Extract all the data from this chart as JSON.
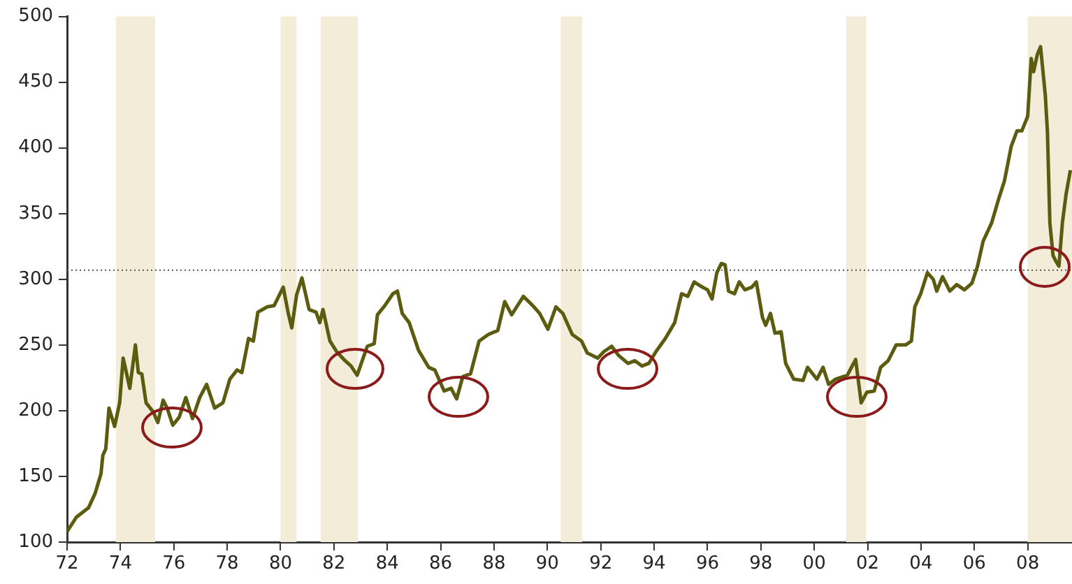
{
  "chart_data": {
    "type": "line",
    "x": [
      1972.0,
      1972.35,
      1972.8,
      1973.05,
      1973.27,
      1973.34,
      1973.45,
      1973.57,
      1973.78,
      1973.97,
      1974.1,
      1974.2,
      1974.35,
      1974.56,
      1974.67,
      1974.8,
      1974.96,
      1975.23,
      1975.4,
      1975.6,
      1975.75,
      1975.96,
      1976.2,
      1976.45,
      1976.7,
      1976.97,
      1977.23,
      1977.53,
      1977.84,
      1978.1,
      1978.37,
      1978.55,
      1978.8,
      1978.98,
      1979.15,
      1979.5,
      1979.76,
      1980.1,
      1980.28,
      1980.42,
      1980.6,
      1980.8,
      1981.07,
      1981.33,
      1981.47,
      1981.59,
      1981.85,
      1982.1,
      1982.37,
      1982.64,
      1982.87,
      1983.25,
      1983.51,
      1983.63,
      1983.91,
      1984.21,
      1984.38,
      1984.56,
      1984.82,
      1985.17,
      1985.55,
      1985.78,
      1986.13,
      1986.39,
      1986.6,
      1986.83,
      1987.12,
      1987.44,
      1987.79,
      1988.14,
      1988.4,
      1988.66,
      1989.1,
      1989.45,
      1989.71,
      1990.02,
      1990.32,
      1990.58,
      1990.93,
      1991.28,
      1991.49,
      1991.89,
      1992.12,
      1992.41,
      1992.67,
      1993.02,
      1993.28,
      1993.55,
      1993.8,
      1994.07,
      1994.42,
      1994.77,
      1995.03,
      1995.26,
      1995.5,
      1995.81,
      1996.0,
      1996.17,
      1996.35,
      1996.52,
      1996.66,
      1996.79,
      1997.01,
      1997.19,
      1997.4,
      1997.66,
      1997.83,
      1998.06,
      1998.18,
      1998.36,
      1998.53,
      1998.76,
      1998.93,
      1999.23,
      1999.58,
      1999.75,
      2000.1,
      2000.33,
      2000.54,
      2000.8,
      2001.24,
      2001.55,
      2001.76,
      2001.97,
      2002.25,
      2002.49,
      2002.77,
      2003.07,
      2003.42,
      2003.64,
      2003.77,
      2003.99,
      2004.24,
      2004.46,
      2004.59,
      2004.81,
      2005.08,
      2005.34,
      2005.63,
      2005.91,
      2006.12,
      2006.33,
      2006.65,
      2006.91,
      2007.13,
      2007.38,
      2007.6,
      2007.78,
      2008.0,
      2008.13,
      2008.22,
      2008.36,
      2008.48,
      2008.66,
      2008.74,
      2008.83,
      2008.95,
      2009.05,
      2009.17,
      2009.3,
      2009.44,
      2009.6
    ],
    "series": [
      {
        "color": "#5c5c10",
        "values": [
          108,
          119,
          126,
          137,
          152,
          166,
          171,
          202,
          188,
          206,
          240,
          231,
          217,
          250,
          229,
          228,
          206,
          199,
          191,
          208,
          202,
          189,
          195,
          210,
          194,
          210,
          220,
          202,
          206,
          224,
          231,
          229,
          255,
          253,
          275,
          279,
          280,
          294,
          275,
          263,
          288,
          301,
          277,
          275,
          267,
          277,
          253,
          245,
          239,
          234,
          227,
          249,
          251,
          273,
          280,
          289,
          291,
          274,
          267,
          246,
          233,
          231,
          215,
          217,
          209,
          226,
          228,
          253,
          258,
          261,
          283,
          273,
          287,
          280,
          274,
          262,
          279,
          274,
          258,
          253,
          244,
          240,
          245,
          249,
          242,
          236,
          238,
          234,
          236,
          245,
          255,
          267,
          289,
          287,
          298,
          294,
          292,
          285,
          305,
          312,
          311,
          291,
          289,
          298,
          292,
          294,
          298,
          271,
          265,
          274,
          259,
          260,
          236,
          224,
          223,
          233,
          224,
          233,
          220,
          224,
          227,
          239,
          206,
          214,
          215,
          233,
          238,
          250,
          250,
          253,
          279,
          289,
          305,
          300,
          291,
          302,
          291,
          296,
          292,
          297,
          310,
          329,
          343,
          361,
          375,
          401,
          413,
          413,
          424,
          468,
          458,
          471,
          477,
          440,
          412,
          343,
          318,
          314,
          310,
          343,
          365,
          383
        ]
      }
    ],
    "xlim": [
      1972,
      2009.66
    ],
    "xticks": [
      {
        "value": 1972,
        "label": "72"
      },
      {
        "value": 1974,
        "label": "74"
      },
      {
        "value": 1976,
        "label": "76"
      },
      {
        "value": 1978,
        "label": "78"
      },
      {
        "value": 1980,
        "label": "80"
      },
      {
        "value": 1982,
        "label": "82"
      },
      {
        "value": 1984,
        "label": "84"
      },
      {
        "value": 1986,
        "label": "86"
      },
      {
        "value": 1988,
        "label": "88"
      },
      {
        "value": 1990,
        "label": "90"
      },
      {
        "value": 1992,
        "label": "92"
      },
      {
        "value": 1994,
        "label": "94"
      },
      {
        "value": 1996,
        "label": "96"
      },
      {
        "value": 1998,
        "label": "98"
      },
      {
        "value": 2000,
        "label": "00"
      },
      {
        "value": 2002,
        "label": "02"
      },
      {
        "value": 2004,
        "label": "04"
      },
      {
        "value": 2006,
        "label": "06"
      },
      {
        "value": 2008,
        "label": "08"
      }
    ],
    "ylim": [
      100,
      500
    ],
    "yticks": [
      100,
      150,
      200,
      250,
      300,
      350,
      400,
      450,
      500
    ],
    "grid": false,
    "legend": false,
    "marker": "none",
    "line_style": "solid",
    "ref_lines": [
      {
        "axis": "y",
        "value": 307,
        "color": "#555555",
        "line_style": "dotted"
      }
    ],
    "bands": [
      {
        "axis": "x",
        "from": 1973.83,
        "to": 1975.3,
        "color": "#f3ecd8"
      },
      {
        "axis": "x",
        "from": 1980.0,
        "to": 1980.6,
        "color": "#f3ecd8"
      },
      {
        "axis": "x",
        "from": 1981.5,
        "to": 1982.9,
        "color": "#f3ecd8"
      },
      {
        "axis": "x",
        "from": 1990.5,
        "to": 1991.3,
        "color": "#f3ecd8"
      },
      {
        "axis": "x",
        "from": 2001.2,
        "to": 2001.95,
        "color": "#f3ecd8"
      },
      {
        "axis": "x",
        "from": 2008.0,
        "to": 2009.66,
        "color": "#f3ecd8"
      }
    ]
  }
}
